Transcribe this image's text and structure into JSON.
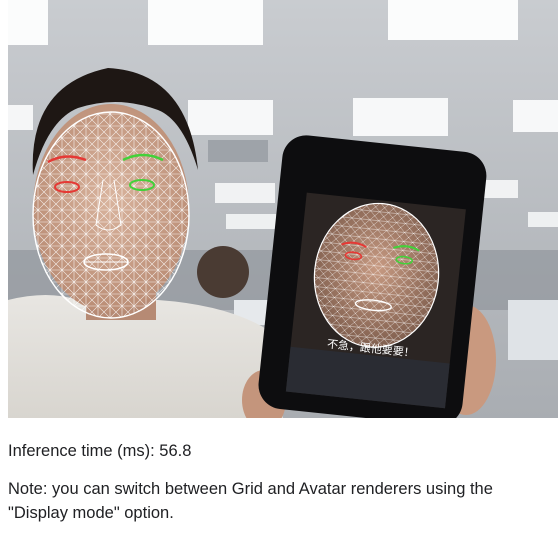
{
  "camera_view": {
    "image_description_icon": "face-mesh-camera-feed-icon",
    "phone_subtitle": "不急，跟他要要！"
  },
  "output": {
    "inference_label": "Inference time (ms): 56.8",
    "note": "Note: you can switch between Grid and Avatar renderers using the \"Display mode\" option."
  },
  "colors": {
    "mesh": "#ffffff",
    "eyebrow_right": "#e53935",
    "eyebrow_left": "#43d13a",
    "text": "#202124"
  }
}
